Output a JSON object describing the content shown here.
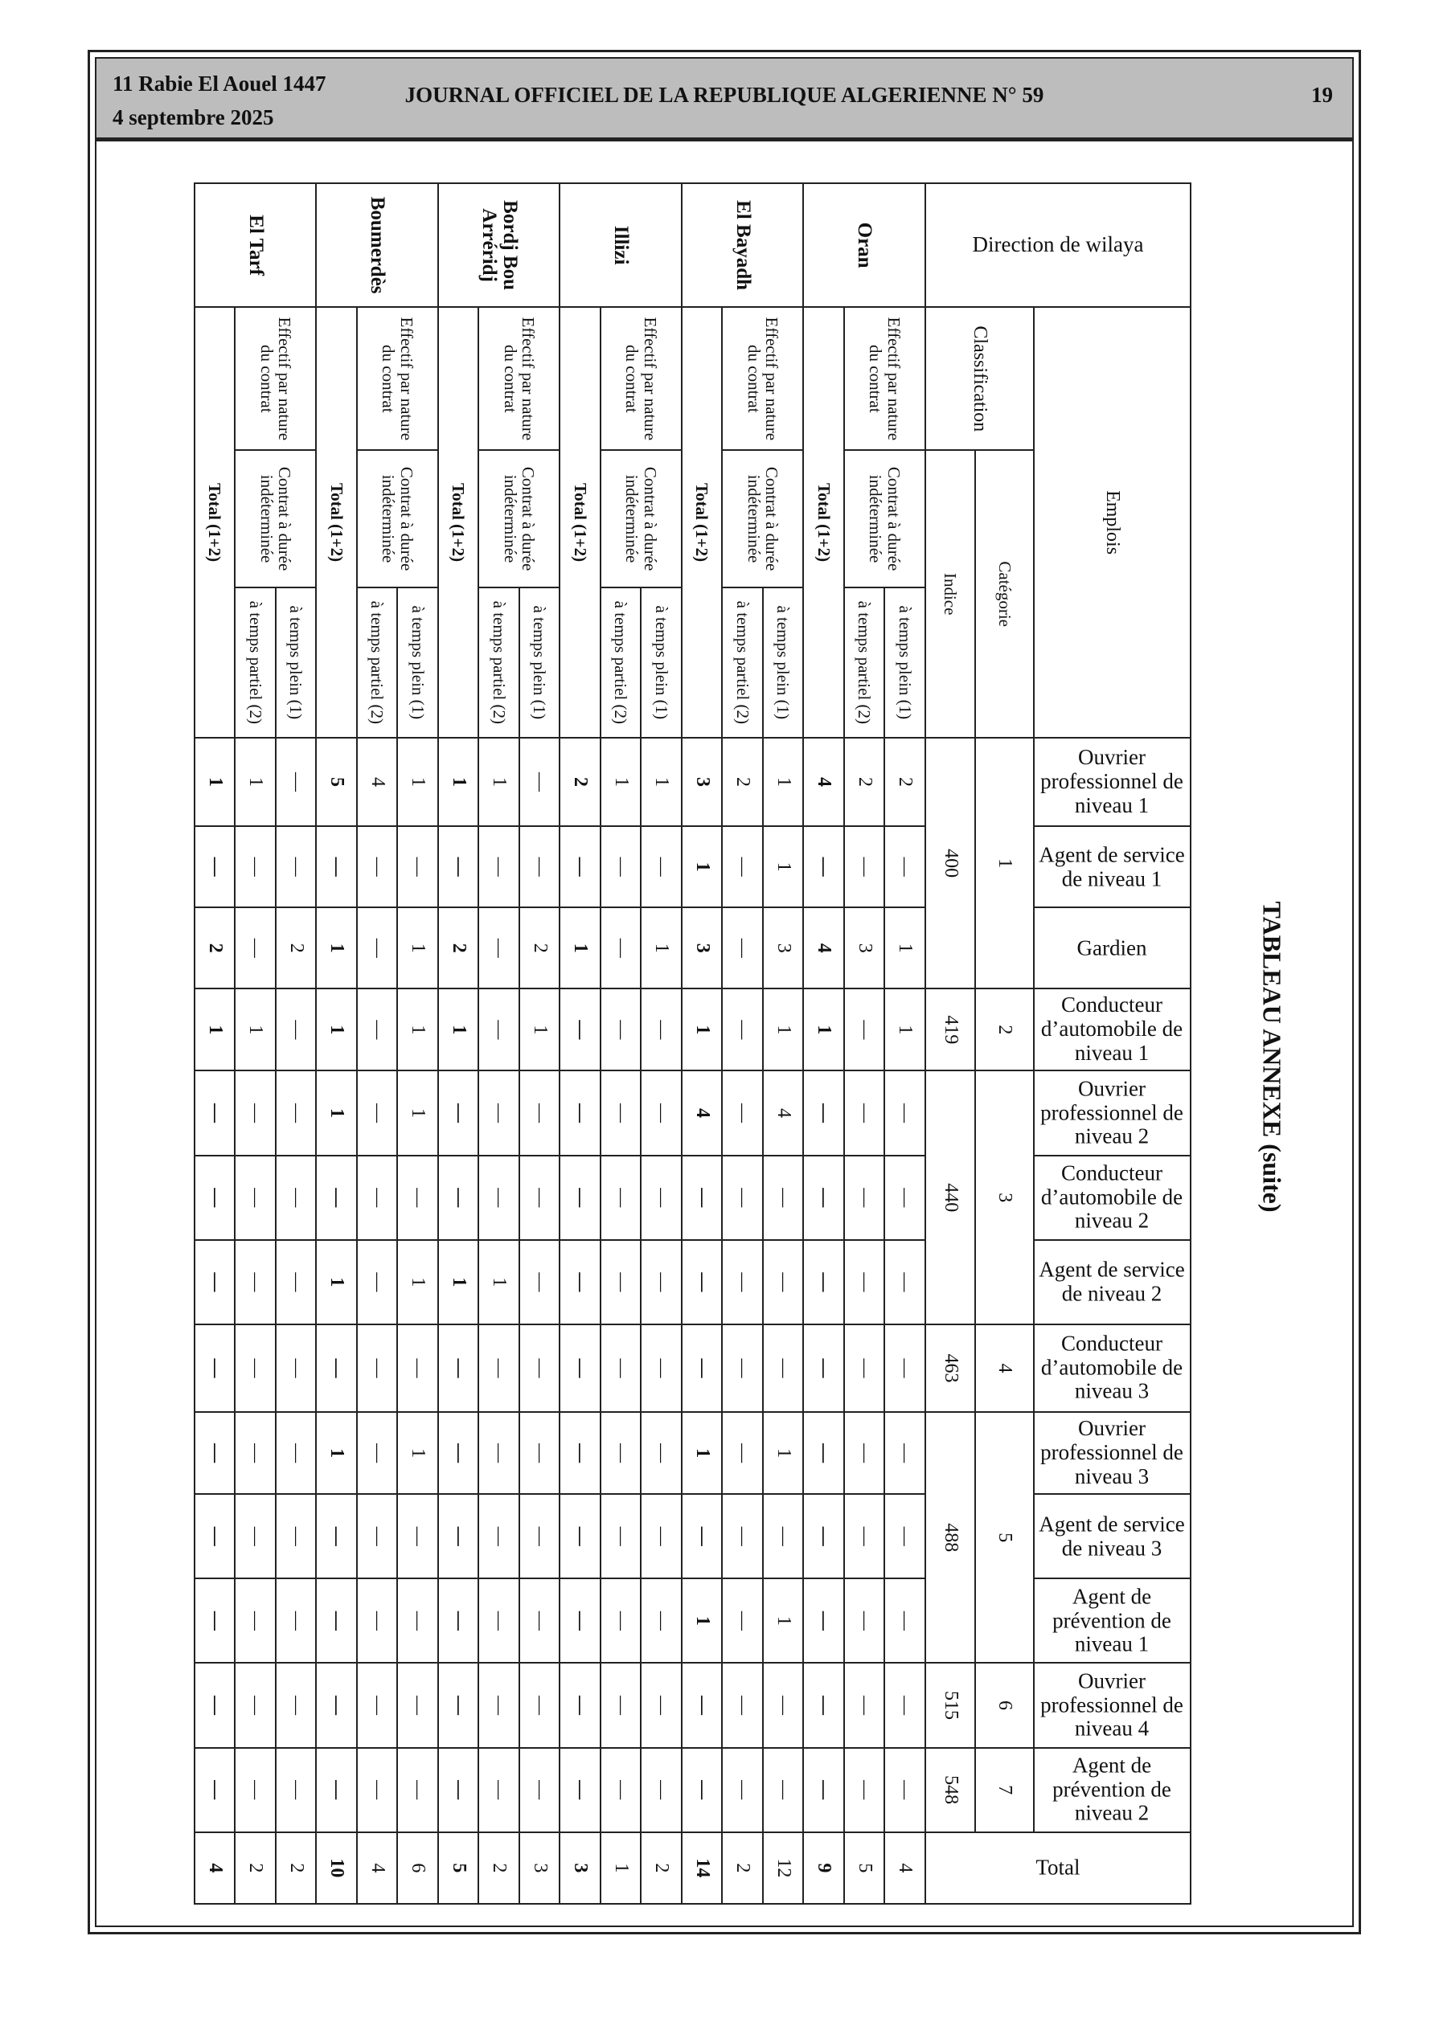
{
  "header": {
    "date_hijri": "11 Rabie El Aouel 1447",
    "date_gregorian": "4 septembre 2025",
    "journal_title": "JOURNAL OFFICIEL DE LA REPUBLIQUE ALGERIENNE N° 59",
    "page_number": "19"
  },
  "table_title": "TABLEAU ANNEXE (suite)",
  "table": {
    "direction_header": "Direction de wilaya",
    "emplois_header": "Emplois",
    "classification_header": "Classification",
    "categorie_header": "Catégorie",
    "indice_header": "Indice",
    "total_header": "Total",
    "effectif_label": "Effectif par nature du contrat",
    "cdi_label": "Contrat à durée indéterminée",
    "plein_label": "à temps plein (1)",
    "partiel_label": "à temps partiel (2)",
    "total_row_label": "Total (1+2)",
    "emplois": [
      "Ouvrier professionnel de niveau 1",
      "Agent de service de niveau 1",
      "Gardien",
      "Conducteur d’automobile de niveau 1",
      "Ouvrier professionnel de niveau 2",
      "Conducteur d’automobile de niveau 2",
      "Agent de service de niveau 2",
      "Conducteur d’automobile de niveau 3",
      "Ouvrier professionnel de niveau 3",
      "Agent de service de niveau 3",
      "Agent de prévention de niveau 1",
      "Ouvrier professionnel de niveau 4",
      "Agent de prévention de niveau 2"
    ],
    "classification": [
      {
        "categorie": "1",
        "indice": "400",
        "span": 3
      },
      {
        "categorie": "2",
        "indice": "419",
        "span": 1
      },
      {
        "categorie": "3",
        "indice": "440",
        "span": 3
      },
      {
        "categorie": "4",
        "indice": "463",
        "span": 1
      },
      {
        "categorie": "5",
        "indice": "488",
        "span": 3
      },
      {
        "categorie": "6",
        "indice": "515",
        "span": 1
      },
      {
        "categorie": "7",
        "indice": "548",
        "span": 1
      }
    ],
    "wilayas": [
      {
        "name": "Oran",
        "plein": [
          "2",
          "—",
          "1",
          "1",
          "—",
          "—",
          "—",
          "—",
          "—",
          "—",
          "—",
          "—",
          "—",
          "4"
        ],
        "partiel": [
          "2",
          "—",
          "3",
          "—",
          "—",
          "—",
          "—",
          "—",
          "—",
          "—",
          "—",
          "—",
          "—",
          "5"
        ],
        "total": [
          "4",
          "—",
          "4",
          "1",
          "—",
          "—",
          "—",
          "—",
          "—",
          "—",
          "—",
          "—",
          "—",
          "9"
        ]
      },
      {
        "name": "El Bayadh",
        "plein": [
          "1",
          "1",
          "3",
          "1",
          "4",
          "—",
          "—",
          "—",
          "1",
          "—",
          "1",
          "—",
          "—",
          "12"
        ],
        "partiel": [
          "2",
          "—",
          "—",
          "—",
          "—",
          "—",
          "—",
          "—",
          "—",
          "—",
          "—",
          "—",
          "—",
          "2"
        ],
        "total": [
          "3",
          "1",
          "3",
          "1",
          "4",
          "—",
          "—",
          "—",
          "1",
          "—",
          "1",
          "—",
          "—",
          "14"
        ]
      },
      {
        "name": "Illizi",
        "plein": [
          "1",
          "—",
          "1",
          "—",
          "—",
          "—",
          "—",
          "—",
          "—",
          "—",
          "—",
          "—",
          "—",
          "2"
        ],
        "partiel": [
          "1",
          "—",
          "—",
          "—",
          "—",
          "—",
          "—",
          "—",
          "—",
          "—",
          "—",
          "—",
          "—",
          "1"
        ],
        "total": [
          "2",
          "—",
          "1",
          "—",
          "—",
          "—",
          "—",
          "—",
          "—",
          "—",
          "—",
          "—",
          "—",
          "3"
        ]
      },
      {
        "name": "Bordj Bou Arréridj",
        "plein": [
          "—",
          "—",
          "2",
          "1",
          "—",
          "—",
          "—",
          "—",
          "—",
          "—",
          "—",
          "—",
          "—",
          "3"
        ],
        "partiel": [
          "1",
          "—",
          "—",
          "—",
          "—",
          "—",
          "1",
          "—",
          "—",
          "—",
          "—",
          "—",
          "—",
          "2"
        ],
        "total": [
          "1",
          "—",
          "2",
          "1",
          "—",
          "—",
          "1",
          "—",
          "—",
          "—",
          "—",
          "—",
          "—",
          "5"
        ]
      },
      {
        "name": "Boumerdès",
        "plein": [
          "1",
          "—",
          "1",
          "1",
          "1",
          "—",
          "1",
          "—",
          "1",
          "—",
          "—",
          "—",
          "—",
          "6"
        ],
        "partiel": [
          "4",
          "—",
          "—",
          "—",
          "—",
          "—",
          "—",
          "—",
          "—",
          "—",
          "—",
          "—",
          "—",
          "4"
        ],
        "total": [
          "5",
          "—",
          "1",
          "1",
          "1",
          "—",
          "1",
          "—",
          "1",
          "—",
          "—",
          "—",
          "—",
          "10"
        ]
      },
      {
        "name": "El Tarf",
        "plein": [
          "—",
          "—",
          "2",
          "—",
          "—",
          "—",
          "—",
          "—",
          "—",
          "—",
          "—",
          "—",
          "—",
          "2"
        ],
        "partiel": [
          "1",
          "—",
          "—",
          "1",
          "—",
          "—",
          "—",
          "—",
          "—",
          "—",
          "—",
          "—",
          "—",
          "2"
        ],
        "total": [
          "1",
          "—",
          "2",
          "1",
          "—",
          "—",
          "—",
          "—",
          "—",
          "—",
          "—",
          "—",
          "—",
          "4"
        ]
      }
    ]
  }
}
